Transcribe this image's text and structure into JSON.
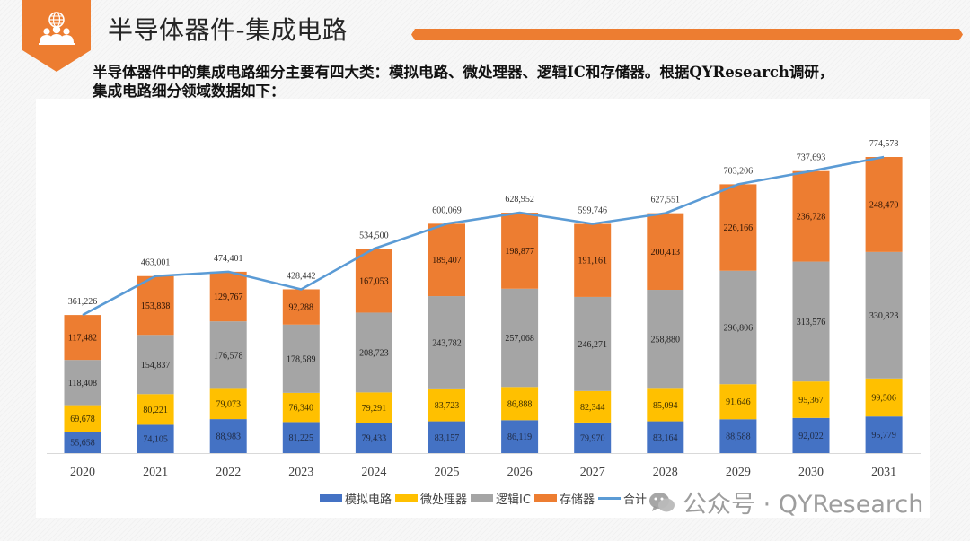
{
  "header": {
    "icon": "globe-people-icon",
    "title": "半导体器件-集成电路",
    "accent_color": "#ED7D31"
  },
  "intro": {
    "line1": "半导体器件中的集成电路细分主要有四大类：模拟电路、微处理器、逻辑IC和存储器。根据QYResearch调研，",
    "line2": "集成电路细分领域数据如下："
  },
  "chart_data": {
    "type": "bar",
    "stacked": true,
    "title": "",
    "xlabel": "",
    "ylabel": "",
    "ylim": [
      0,
      800000
    ],
    "grid": false,
    "legend_position": "bottom",
    "categories": [
      "2020",
      "2021",
      "2022",
      "2023",
      "2024",
      "2025",
      "2026",
      "2027",
      "2028",
      "2029",
      "2030",
      "2031"
    ],
    "series": [
      {
        "name": "模拟电路",
        "color": "#4472C4",
        "values": [
          55658,
          74105,
          88983,
          81225,
          79433,
          83157,
          86119,
          79970,
          83164,
          88588,
          92022,
          95779
        ]
      },
      {
        "name": "微处理器",
        "color": "#FFC000",
        "values": [
          69678,
          80221,
          79073,
          76340,
          79291,
          83723,
          86888,
          82344,
          85094,
          91646,
          95367,
          99506
        ]
      },
      {
        "name": "逻辑IC",
        "color": "#A5A5A5",
        "values": [
          118408,
          154837,
          176578,
          178589,
          208723,
          243782,
          257068,
          246271,
          258880,
          296806,
          313576,
          330823
        ]
      },
      {
        "name": "存储器",
        "color": "#ED7D31",
        "values": [
          117482,
          153838,
          129767,
          92288,
          167053,
          189407,
          198877,
          191161,
          200413,
          226166,
          236728,
          248470
        ]
      }
    ],
    "line_series": {
      "name": "合计",
      "type": "line",
      "color": "#5B9BD5",
      "values": [
        361226,
        463001,
        474401,
        428442,
        534500,
        600069,
        628952,
        599746,
        627551,
        703206,
        737693,
        774578
      ]
    },
    "data_labels": {
      "模拟电路": [
        "55,658",
        "74,105",
        "88,983",
        "81,225",
        "79,433",
        "83,157",
        "86,119",
        "79,970",
        "83,164",
        "88,588",
        "92,022",
        "95,779"
      ],
      "微处理器": [
        "69,678",
        "80,221",
        "79,073",
        "76,340",
        "79,291",
        "83,723",
        "86,888",
        "82,344",
        "85,094",
        "91,646",
        "95,367",
        "99,506"
      ],
      "逻辑IC": [
        "118,408",
        "154,837",
        "176,578",
        "178,589",
        "208,723",
        "243,782",
        "257,068",
        "246,271",
        "258,880",
        "296,806",
        "313,576",
        "330,823"
      ],
      "存储器": [
        "117,482",
        "153,838",
        "129,767",
        "92,288",
        "167,053",
        "189,407",
        "198,877",
        "191,161",
        "200,413",
        "226,166",
        "236,728",
        "248,470"
      ],
      "合计": [
        "361,226",
        "463,001",
        "474,401",
        "428,442",
        "534,500",
        "600,069",
        "628,952",
        "599,746",
        "627,551",
        "703,206",
        "737,693",
        "774,578"
      ]
    }
  },
  "legend": {
    "items": [
      {
        "label": "模拟电路",
        "color": "#4472C4",
        "kind": "bar"
      },
      {
        "label": "微处理器",
        "color": "#FFC000",
        "kind": "bar"
      },
      {
        "label": "逻辑IC",
        "color": "#A5A5A5",
        "kind": "bar"
      },
      {
        "label": "存储器",
        "color": "#ED7D31",
        "kind": "bar"
      },
      {
        "label": "合计",
        "color": "#5B9BD5",
        "kind": "line"
      }
    ]
  },
  "watermark": {
    "icon": "wechat-icon",
    "text": "公众号 · QYResearch"
  }
}
